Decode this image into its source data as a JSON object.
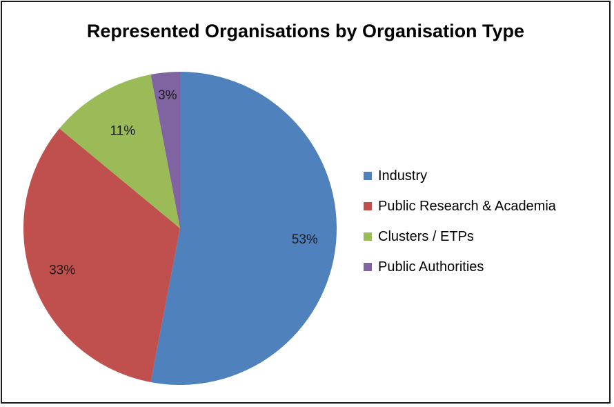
{
  "chart_data": {
    "type": "pie",
    "title": "Represented Organisations by Organisation Type",
    "categories": [
      "Industry",
      "Public Research & Academia",
      "Clusters / ETPs",
      "Public Authorities"
    ],
    "values": [
      53,
      33,
      11,
      3
    ],
    "data_labels": [
      "53%",
      "33%",
      "11%",
      "3%"
    ],
    "colors": [
      "#4f81bd",
      "#c0504d",
      "#9bbb59",
      "#8064a2"
    ],
    "legend_placement": "right",
    "start_angle": "12 o'clock, clockwise"
  }
}
